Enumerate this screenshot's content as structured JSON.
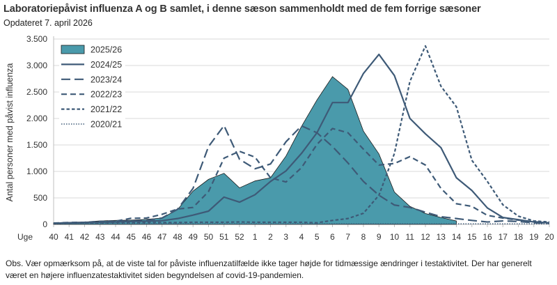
{
  "chart_data": {
    "type": "area+line",
    "title": "Laboratoriepåvist influenza A og B samlet, i denne sæson sammenholdt med de fem forrige sæsoner",
    "subtitle": "Opdateret 7. april 2026",
    "xlabel": "Uge",
    "ylabel": "Antal personer med påvist influenza",
    "ylim": [
      0,
      3500
    ],
    "yticks": [
      0,
      500,
      1000,
      1500,
      2000,
      2500,
      3000,
      3500
    ],
    "ytick_labels": [
      "0",
      "500",
      "1.000",
      "1.500",
      "2.000",
      "2.500",
      "3.000",
      "3.500"
    ],
    "categories": [
      "40",
      "41",
      "42",
      "43",
      "44",
      "45",
      "46",
      "47",
      "48",
      "49",
      "50",
      "51",
      "52",
      "1",
      "2",
      "3",
      "4",
      "5",
      "6",
      "7",
      "8",
      "9",
      "10",
      "11",
      "12",
      "13",
      "14",
      "15",
      "16",
      "17",
      "18",
      "19",
      "20"
    ],
    "grid": "horizontal",
    "legend_position": "top-left",
    "series": [
      {
        "name": "2025/26",
        "style": "area",
        "color": "#4a9aab",
        "values": [
          30,
          40,
          45,
          65,
          75,
          80,
          95,
          120,
          280,
          630,
          850,
          965,
          690,
          820,
          880,
          1290,
          1850,
          2350,
          2790,
          2550,
          1760,
          1330,
          610,
          340,
          205,
          130,
          65,
          null,
          null,
          null,
          null,
          null,
          null
        ]
      },
      {
        "name": "2024/25",
        "style": "solid",
        "color": "#3e5a77",
        "values": [
          22,
          30,
          35,
          40,
          45,
          55,
          60,
          70,
          110,
          175,
          250,
          515,
          420,
          560,
          810,
          1010,
          1340,
          1730,
          2300,
          2300,
          2850,
          3210,
          2810,
          2000,
          1710,
          1450,
          880,
          640,
          310,
          130,
          90,
          45,
          30
        ]
      },
      {
        "name": "2023/24",
        "style": "long-dash",
        "color": "#3e5a77",
        "values": [
          22,
          30,
          35,
          45,
          55,
          65,
          75,
          120,
          285,
          680,
          1470,
          1865,
          1230,
          1050,
          1140,
          1560,
          1860,
          1730,
          1470,
          1160,
          810,
          550,
          365,
          320,
          230,
          145,
          110,
          75,
          45,
          65,
          55,
          30,
          22
        ]
      },
      {
        "name": "2022/23",
        "style": "dash",
        "color": "#3e5a77",
        "values": [
          25,
          35,
          40,
          55,
          60,
          115,
          120,
          190,
          290,
          320,
          620,
          1250,
          1380,
          1270,
          880,
          800,
          1070,
          1510,
          1810,
          1730,
          1420,
          1120,
          1150,
          1280,
          1120,
          680,
          390,
          340,
          170,
          120,
          80,
          50,
          30
        ]
      },
      {
        "name": "2021/22",
        "style": "short-dash",
        "color": "#3e5a77",
        "values": [
          20,
          25,
          30,
          30,
          35,
          35,
          35,
          35,
          35,
          40,
          40,
          40,
          45,
          40,
          40,
          40,
          40,
          30,
          75,
          110,
          210,
          550,
          1340,
          2700,
          3370,
          2610,
          2220,
          1210,
          810,
          370,
          155,
          65,
          45
        ]
      },
      {
        "name": "2020/21",
        "style": "dotted",
        "color": "#3e5a77",
        "values": [
          10,
          10,
          10,
          10,
          10,
          10,
          10,
          10,
          10,
          10,
          10,
          10,
          10,
          10,
          10,
          10,
          10,
          10,
          10,
          10,
          10,
          10,
          10,
          10,
          10,
          10,
          10,
          10,
          10,
          10,
          10,
          10,
          10
        ]
      }
    ]
  },
  "note": "Obs. Vær opmærksom på, at de viste tal for påviste influenzatilfælde ikke tager højde for tidmæssige ændringer i testaktivitet. Der har generelt været en højere influenzatestaktivitet siden begyndelsen af covid-19-pandemien."
}
